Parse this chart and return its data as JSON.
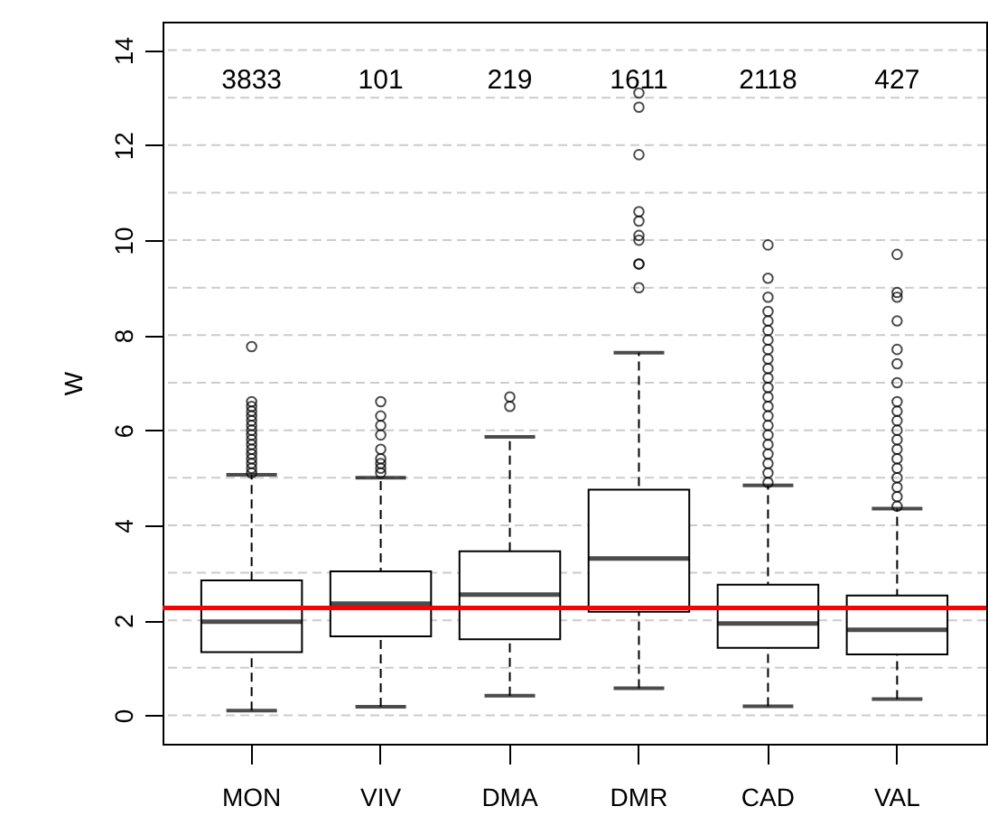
{
  "chart_data": {
    "type": "box",
    "ylabel": "W",
    "categories": [
      "MON",
      "VIV",
      "DMA",
      "DMR",
      "CAD",
      "VAL"
    ],
    "boxes": [
      {
        "low": 0.1,
        "q1": 1.33,
        "median": 1.97,
        "q3": 2.84,
        "high": 5.06,
        "outliers": [
          5.1,
          5.2,
          5.3,
          5.4,
          5.5,
          5.6,
          5.7,
          5.8,
          5.9,
          6.0,
          6.1,
          6.2,
          6.3,
          6.4,
          6.5,
          6.6,
          7.76
        ]
      },
      {
        "low": 0.18,
        "q1": 1.66,
        "median": 2.35,
        "q3": 3.03,
        "high": 5.0,
        "outliers": [
          5.1,
          5.2,
          5.3,
          5.4,
          5.6,
          5.9,
          6.1,
          6.3,
          6.6
        ]
      },
      {
        "low": 0.41,
        "q1": 1.6,
        "median": 2.54,
        "q3": 3.45,
        "high": 5.86,
        "outliers": [
          6.5,
          6.7
        ]
      },
      {
        "low": 0.57,
        "q1": 2.18,
        "median": 3.3,
        "q3": 4.75,
        "high": 7.63,
        "outliers": [
          9.0,
          9.5,
          9.5,
          10.0,
          10.1,
          10.4,
          10.6,
          11.8,
          12.8,
          13.1
        ]
      },
      {
        "low": 0.19,
        "q1": 1.42,
        "median": 1.93,
        "q3": 2.75,
        "high": 4.84,
        "outliers": [
          4.9,
          5.1,
          5.3,
          5.5,
          5.7,
          5.9,
          6.1,
          6.3,
          6.5,
          6.7,
          6.9,
          7.1,
          7.3,
          7.5,
          7.7,
          7.9,
          8.1,
          8.3,
          8.5,
          8.8,
          9.2,
          9.9
        ]
      },
      {
        "low": 0.34,
        "q1": 1.28,
        "median": 1.8,
        "q3": 2.52,
        "high": 4.35,
        "outliers": [
          4.4,
          4.6,
          4.8,
          5.0,
          5.2,
          5.4,
          5.6,
          5.8,
          6.0,
          6.2,
          6.4,
          6.6,
          7.0,
          7.4,
          7.7,
          8.3,
          8.8,
          8.9,
          9.7
        ]
      }
    ],
    "ylim": [
      -0.6,
      14.6
    ],
    "yticks": [
      0,
      {
        "value": 1,
        "label": null
      },
      2,
      {
        "value": 3,
        "label": null
      },
      4,
      {
        "value": 5,
        "label": null
      },
      6,
      {
        "value": 7,
        "label": null
      },
      8,
      {
        "value": 9,
        "label": null
      },
      10,
      {
        "value": 11,
        "label": null
      },
      12,
      {
        "value": 13,
        "label": null
      },
      14
    ],
    "grid": "y",
    "ref_lines": [
      {
        "axis": "y",
        "value": 2.26,
        "color": "#ff0000"
      }
    ],
    "annotations": [
      "3833",
      "101",
      "219",
      "1611",
      "2118",
      "427"
    ]
  }
}
